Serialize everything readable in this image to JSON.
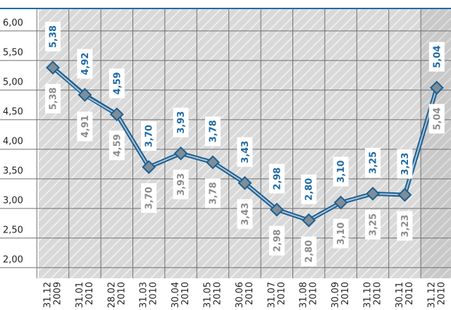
{
  "chart_data": {
    "type": "line",
    "categories": [
      [
        "31.12",
        "2009"
      ],
      [
        "31.01",
        "2010"
      ],
      [
        "28.02",
        "2010"
      ],
      [
        "31.03",
        "2010"
      ],
      [
        "30.04",
        "2010"
      ],
      [
        "31.05",
        "2010"
      ],
      [
        "30.06",
        "2010"
      ],
      [
        "31.07",
        "2010"
      ],
      [
        "31.08",
        "2010"
      ],
      [
        "30.09",
        "2010"
      ],
      [
        "31.10",
        "2010"
      ],
      [
        "30.11",
        "2010"
      ],
      [
        "31.12",
        "2010"
      ]
    ],
    "series": [
      {
        "color": "#1f5f8f",
        "values": [
          5.38,
          4.92,
          4.59,
          3.7,
          3.93,
          3.78,
          3.43,
          2.98,
          2.8,
          3.1,
          3.25,
          3.23,
          5.04
        ],
        "value_labels": [
          "5,38",
          "4,92",
          "4,59",
          "3,70",
          "3,93",
          "3,78",
          "3,43",
          "2,98",
          "2,80",
          "3,10",
          "3,25",
          "3,23",
          "5,04"
        ]
      },
      {
        "color": "#8a9aa6",
        "values": [
          5.38,
          4.91,
          4.59,
          3.7,
          3.93,
          3.78,
          3.43,
          2.98,
          2.8,
          3.1,
          3.25,
          3.23,
          5.04
        ],
        "value_labels": [
          "5,38",
          "4,91",
          "4,59",
          "3,70",
          "3,93",
          "3,78",
          "3,43",
          "2,98",
          "2,80",
          "3,10",
          "3,25",
          "3,23",
          "5,04"
        ]
      }
    ],
    "ylim": [
      1.82,
      6.38
    ],
    "yticks": [
      {
        "value": 2,
        "label": "2,00"
      },
      {
        "value": 2.5,
        "label": "2,50"
      },
      {
        "value": 3,
        "label": "3,00"
      },
      {
        "value": 3.5,
        "label": "3,50"
      },
      {
        "value": 4,
        "label": "4,00"
      },
      {
        "value": 4.5,
        "label": "4,50"
      },
      {
        "value": 5,
        "label": "5,00"
      },
      {
        "value": 5.5,
        "label": "5,50"
      },
      {
        "value": 6,
        "label": "6,00"
      }
    ],
    "grid": true
  }
}
